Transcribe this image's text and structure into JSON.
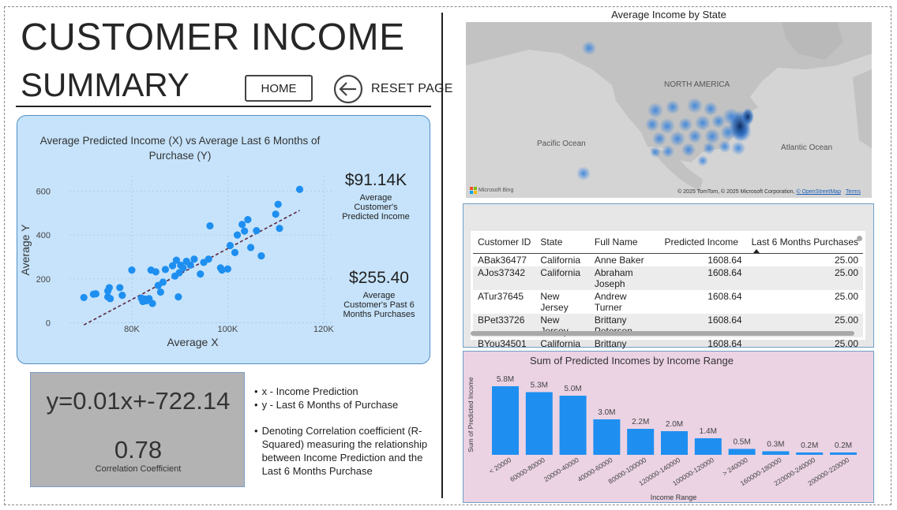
{
  "header": {
    "title_line1": "CUSTOMER INCOME",
    "title_line2": "SUMMARY",
    "home_label": "HOME",
    "reset_label": "RESET PAGE"
  },
  "scatter": {
    "title_line1": "Average Predicted Income (X) vs Average Last 6 Months of",
    "title_line2": "Purchase (Y)"
  },
  "kpis": {
    "predicted_income_value": "$91.14K",
    "predicted_income_label_lines": [
      "Average",
      "Customer's",
      "Predicted Income"
    ],
    "past_purchases_value": "$255.40",
    "past_purchases_label_lines": [
      "Average",
      "Customer's Past 6",
      "Months Purchases"
    ]
  },
  "regression": {
    "equation": "y=0.01x+-722.14",
    "r_squared": "0.78",
    "r_squared_label": "Correlation Coefficient"
  },
  "notes": [
    "x - Income Prediction",
    "y - Last 6 Months of Purchase",
    "Denoting Correlation coefficient (R-Squared) measuring the relationship between Income Prediction and the Last 6 Months Purchase"
  ],
  "map": {
    "title": "Average Income by State",
    "labels": {
      "north_america": "NORTH AMERICA",
      "pacific": "Pacific Ocean",
      "atlantic": "Atlantic Ocean"
    },
    "logo_text": "Microsoft Bing",
    "credit_text": "© 2025 TomTom, © 2025 Microsoft Corporation,",
    "credit_link_osm": "© OpenStreetMap",
    "credit_link_terms": "Terms"
  },
  "table": {
    "columns": [
      "Customer ID",
      "State",
      "Full Name",
      "Predicted Income",
      "Last 6 Months Purchases"
    ],
    "rows": [
      [
        "ABak36477",
        "California",
        "Anne Baker",
        "1608.64",
        "25.00"
      ],
      [
        "AJos37342",
        "California",
        "Abraham Joseph",
        "1608.64",
        "25.00"
      ],
      [
        "ATur37645",
        "New Jersey",
        "Andrew Turner",
        "1608.64",
        "25.00"
      ],
      [
        "BPet33726",
        "New Jersey",
        "Brittany Peterson",
        "1608.64",
        "25.00"
      ],
      [
        "BYou34501",
        "California",
        "Brittany Young",
        "1608.64",
        "25.00"
      ]
    ]
  },
  "colors": {
    "scatter_point": "#1e8ff0",
    "trend_line": "#5b2340",
    "bar": "#1e8ff0",
    "scatter_bg": "#c6e3fb",
    "bar_bg": "#ebd3e4",
    "equation_bg": "#b3b3b3"
  },
  "chart_data": [
    {
      "type": "scatter",
      "xlabel": "Average X",
      "ylabel": "Average Y",
      "x_ticks": [
        80000,
        100000,
        120000
      ],
      "x_tick_labels": [
        "80K",
        "100K",
        "120K"
      ],
      "y_ticks": [
        0,
        200,
        400,
        600
      ],
      "y_tick_labels": [
        "0",
        "200",
        "400",
        "600"
      ],
      "xlim": [
        67000,
        122000
      ],
      "ylim": [
        -20,
        670
      ],
      "grid": true,
      "trendline": {
        "x": [
          70000,
          115000
        ],
        "y": [
          -10,
          512
        ]
      },
      "points": [
        [
          70000,
          115
        ],
        [
          72000,
          130
        ],
        [
          72500,
          132
        ],
        [
          75000,
          118
        ],
        [
          75000,
          145
        ],
        [
          75300,
          160
        ],
        [
          75500,
          110
        ],
        [
          77500,
          160
        ],
        [
          78000,
          125
        ],
        [
          80000,
          240
        ],
        [
          82000,
          112
        ],
        [
          82300,
          97
        ],
        [
          82700,
          108
        ],
        [
          83000,
          100
        ],
        [
          83600,
          110
        ],
        [
          84000,
          240
        ],
        [
          84300,
          88
        ],
        [
          85000,
          232
        ],
        [
          85500,
          170
        ],
        [
          86000,
          140
        ],
        [
          86500,
          185
        ],
        [
          87000,
          243
        ],
        [
          88500,
          260
        ],
        [
          89000,
          213
        ],
        [
          89300,
          285
        ],
        [
          89700,
          118
        ],
        [
          89900,
          228
        ],
        [
          90200,
          262
        ],
        [
          90700,
          250
        ],
        [
          91400,
          280
        ],
        [
          92200,
          263
        ],
        [
          93000,
          290
        ],
        [
          94300,
          222
        ],
        [
          95000,
          275
        ],
        [
          96000,
          290
        ],
        [
          96300,
          442
        ],
        [
          98500,
          250
        ],
        [
          98800,
          240
        ],
        [
          100000,
          245
        ],
        [
          100500,
          352
        ],
        [
          101500,
          320
        ],
        [
          102000,
          400
        ],
        [
          103000,
          448
        ],
        [
          103500,
          418
        ],
        [
          104200,
          470
        ],
        [
          104800,
          343
        ],
        [
          106000,
          420
        ],
        [
          107000,
          305
        ],
        [
          110000,
          495
        ],
        [
          110500,
          540
        ],
        [
          110800,
          430
        ],
        [
          115000,
          608
        ]
      ]
    },
    {
      "type": "bar",
      "title": "Sum of Predicted Incomes by Income Range",
      "xlabel": "Income Range",
      "ylabel": "Sum of Predicted Income",
      "categories": [
        "< 20000",
        "60000-80000",
        "20000-40000",
        "40000-60000",
        "80000-100000",
        "120000-140000",
        "100000-120000",
        "> 240000",
        "160000-180000",
        "220000-240000",
        "200000-220000"
      ],
      "values": [
        5.8,
        5.3,
        5.0,
        3.0,
        2.2,
        2.0,
        1.4,
        0.5,
        0.3,
        0.2,
        0.2
      ],
      "value_labels": [
        "5.8M",
        "5.3M",
        "5.0M",
        "3.0M",
        "2.2M",
        "2.0M",
        "1.4M",
        "0.5M",
        "0.3M",
        "0.2M",
        "0.2M"
      ],
      "ylim": [
        0,
        6.2
      ]
    }
  ]
}
